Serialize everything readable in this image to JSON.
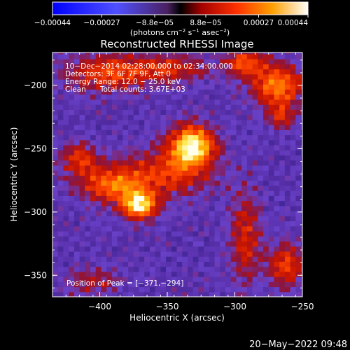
{
  "chart_data": {
    "type": "heatmap",
    "title": "Reconstructed RHESSI Image",
    "xlabel": "Heliocentric X (arcsec)",
    "ylabel": "Heliocentric Y (arcsec)",
    "xlim": [
      -435,
      -250
    ],
    "ylim": [
      -367,
      -174
    ],
    "xticks": [
      -400,
      -350,
      -300,
      -250
    ],
    "yticks": [
      -200,
      -250,
      -300,
      -350
    ],
    "xtick_labels": [
      "−400",
      "−350",
      "−300",
      "−250"
    ],
    "ytick_labels": [
      "−200",
      "−250",
      "−300",
      "−350"
    ],
    "colorbar": {
      "range": [
        -0.00044,
        0.00044
      ],
      "ticks": [
        -0.00044,
        -0.00027,
        -8.8e-05,
        8.8e-05,
        0.00027,
        0.00044
      ],
      "tick_labels": [
        "−0.00044",
        "−0.00027",
        "−8.8e−05",
        "8.8e−05",
        "0.00027",
        "0.00044"
      ],
      "unit_parts": [
        "(photons cm",
        "−2",
        " s",
        "−1",
        " asec",
        "−2",
        ")"
      ]
    },
    "sources": [
      {
        "x": -331,
        "y": -247,
        "sx": 11,
        "sy": 11,
        "amp": 1.0
      },
      {
        "x": -371,
        "y": -294,
        "sx": 9,
        "sy": 8,
        "amp": 0.95
      },
      {
        "x": -392,
        "y": -278,
        "sx": 16,
        "sy": 10,
        "amp": 0.6
      },
      {
        "x": -350,
        "y": -268,
        "sx": 22,
        "sy": 14,
        "amp": 0.5
      },
      {
        "x": -415,
        "y": -258,
        "sx": 10,
        "sy": 9,
        "amp": 0.45
      },
      {
        "x": -395,
        "y": -190,
        "sx": 22,
        "sy": 10,
        "amp": 0.5
      },
      {
        "x": -348,
        "y": -186,
        "sx": 22,
        "sy": 8,
        "amp": 0.4
      },
      {
        "x": -268,
        "y": -200,
        "sx": 13,
        "sy": 12,
        "amp": 0.7
      },
      {
        "x": -292,
        "y": -182,
        "sx": 10,
        "sy": 8,
        "amp": 0.55
      },
      {
        "x": -266,
        "y": -225,
        "sx": 7,
        "sy": 7,
        "amp": 0.4
      },
      {
        "x": -292,
        "y": -320,
        "sx": 8,
        "sy": 26,
        "amp": 0.4
      },
      {
        "x": -262,
        "y": -342,
        "sx": 9,
        "sy": 13,
        "amp": 0.5
      },
      {
        "x": -405,
        "y": -355,
        "sx": 14,
        "sy": 8,
        "amp": 0.3
      }
    ],
    "annotations": [
      "10−Dec−2014 02:28:00.000 to 02:34:00.000",
      "Detectors: 3F 6F 7F 9F, Att 0",
      "Energy Range: 12.0 − 25.0 keV",
      "Clean      Total counts: 3.67E+03"
    ],
    "peak_label": "Position of Peak = [−371,−294]"
  },
  "timestamp": "20−May−2022 09:48"
}
